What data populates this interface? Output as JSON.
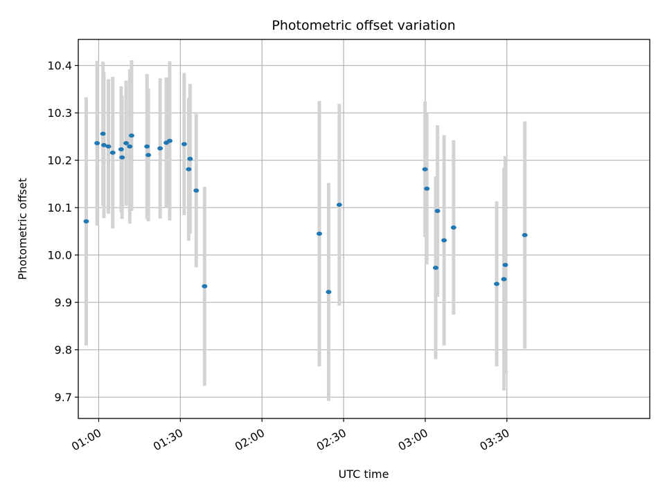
{
  "chart_data": {
    "type": "scatter",
    "title": "Photometric offset variation",
    "xlabel": "UTC time",
    "ylabel": "Photometric offset",
    "x_unit": "time (HH:MM, UTC)",
    "xlim": [
      "00:52:30",
      "04:22:30"
    ],
    "ylim": [
      9.655,
      10.455
    ],
    "xticks": [
      "01:00",
      "01:30",
      "02:00",
      "02:30",
      "03:00",
      "03:30"
    ],
    "yticks": [
      9.7,
      9.8,
      9.9,
      10.0,
      10.1,
      10.2,
      10.3,
      10.4
    ],
    "ytick_labels": [
      "9.7",
      "9.8",
      "9.9",
      "10.0",
      "10.1",
      "10.2",
      "10.3",
      "10.4"
    ],
    "grid": true,
    "series": [
      {
        "marker_color": "#1f77b4",
        "errorbar_color": "#d3d3d3",
        "points": [
          {
            "x": "00:55:25",
            "y": 10.071,
            "err": 0.262
          },
          {
            "x": "00:59:25",
            "y": 10.236,
            "err": 0.174
          },
          {
            "x": "01:01:35",
            "y": 10.256,
            "err": 0.152
          },
          {
            "x": "01:01:55",
            "y": 10.232,
            "err": 0.154
          },
          {
            "x": "01:03:35",
            "y": 10.229,
            "err": 0.142
          },
          {
            "x": "01:05:10",
            "y": 10.216,
            "err": 0.16
          },
          {
            "x": "01:08:15",
            "y": 10.223,
            "err": 0.133
          },
          {
            "x": "01:08:35",
            "y": 10.206,
            "err": 0.13
          },
          {
            "x": "01:10:05",
            "y": 10.236,
            "err": 0.132
          },
          {
            "x": "01:11:25",
            "y": 10.229,
            "err": 0.163
          },
          {
            "x": "01:12:05",
            "y": 10.252,
            "err": 0.159
          },
          {
            "x": "01:17:45",
            "y": 10.229,
            "err": 0.153
          },
          {
            "x": "01:18:15",
            "y": 10.211,
            "err": 0.14
          },
          {
            "x": "01:22:35",
            "y": 10.225,
            "err": 0.148
          },
          {
            "x": "01:24:50",
            "y": 10.237,
            "err": 0.138
          },
          {
            "x": "01:26:05",
            "y": 10.241,
            "err": 0.168
          },
          {
            "x": "01:31:25",
            "y": 10.234,
            "err": 0.15
          },
          {
            "x": "01:33:05",
            "y": 10.181,
            "err": 0.151
          },
          {
            "x": "01:33:35",
            "y": 10.203,
            "err": 0.158
          },
          {
            "x": "01:35:50",
            "y": 10.136,
            "err": 0.162
          },
          {
            "x": "01:38:55",
            "y": 9.934,
            "err": 0.21
          },
          {
            "x": "02:21:05",
            "y": 10.045,
            "err": 0.28
          },
          {
            "x": "02:24:30",
            "y": 9.922,
            "err": 0.23
          },
          {
            "x": "02:28:25",
            "y": 10.106,
            "err": 0.213
          },
          {
            "x": "02:59:55",
            "y": 10.181,
            "err": 0.143
          },
          {
            "x": "03:00:35",
            "y": 10.14,
            "err": 0.16
          },
          {
            "x": "03:03:50",
            "y": 9.973,
            "err": 0.193
          },
          {
            "x": "03:04:30",
            "y": 10.093,
            "err": 0.181
          },
          {
            "x": "03:06:55",
            "y": 10.031,
            "err": 0.222
          },
          {
            "x": "03:10:25",
            "y": 10.058,
            "err": 0.184
          },
          {
            "x": "03:26:15",
            "y": 9.939,
            "err": 0.174
          },
          {
            "x": "03:28:55",
            "y": 9.949,
            "err": 0.235
          },
          {
            "x": "03:29:25",
            "y": 9.979,
            "err": 0.23
          },
          {
            "x": "03:36:35",
            "y": 10.042,
            "err": 0.24
          }
        ]
      }
    ]
  }
}
